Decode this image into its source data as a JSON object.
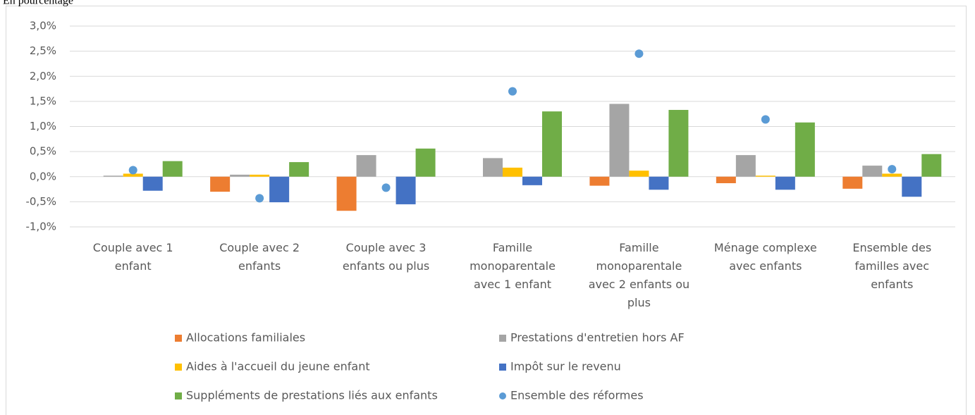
{
  "chart_data": {
    "type": "bar",
    "subtitle": "En pourcentage",
    "categories": [
      "Couple avec 1 enfant",
      "Couple avec 2 enfants",
      "Couple avec 3 enfants ou plus",
      "Famille monoparentale avec 1 enfant",
      "Famille monoparentale avec 2 enfants ou plus",
      "Ménage complexe avec enfants",
      "Ensemble des familles avec enfants"
    ],
    "series": [
      {
        "name": "Allocations familiales",
        "color": "#ed7d31",
        "type": "bar",
        "values": [
          0,
          -0.3,
          -0.68,
          0,
          -0.18,
          -0.13,
          -0.24
        ]
      },
      {
        "name": "Prestations d'entretien hors AF",
        "color": "#a5a5a5",
        "type": "bar",
        "values": [
          0.02,
          0.04,
          0.43,
          0.37,
          1.45,
          0.43,
          0.22
        ]
      },
      {
        "name": "Aides à l'accueil du jeune enfant",
        "color": "#ffc000",
        "type": "bar",
        "values": [
          0.06,
          0.04,
          0,
          0.18,
          0.12,
          0.02,
          0.06
        ]
      },
      {
        "name": "Impôt sur le revenu",
        "color": "#4472c4",
        "type": "bar",
        "values": [
          -0.28,
          -0.51,
          -0.55,
          -0.17,
          -0.26,
          -0.26,
          -0.4
        ]
      },
      {
        "name": "Suppléments de prestations liés aux enfants",
        "color": "#70ad47",
        "type": "bar",
        "values": [
          0.31,
          0.29,
          0.56,
          1.3,
          1.33,
          1.08,
          0.45
        ]
      },
      {
        "name": "Ensemble des réformes",
        "color": "#5b9bd5",
        "type": "scatter",
        "values": [
          0.13,
          -0.43,
          -0.22,
          1.7,
          2.45,
          1.14,
          0.15
        ]
      }
    ],
    "ylim": [
      -1.0,
      3.0
    ],
    "yticks": [
      {
        "value": -1.0,
        "label": "-1,0%"
      },
      {
        "value": -0.5,
        "label": "-0,5%"
      },
      {
        "value": 0,
        "label": "0,0%"
      },
      {
        "value": 0.5,
        "label": "0,5%"
      },
      {
        "value": 1.0,
        "label": "1,0%"
      },
      {
        "value": 1.5,
        "label": "1,5%"
      },
      {
        "value": 2.0,
        "label": "2,0%"
      },
      {
        "value": 2.5,
        "label": "2,5%"
      },
      {
        "value": 3.0,
        "label": "3,0%"
      }
    ],
    "grid": true
  }
}
